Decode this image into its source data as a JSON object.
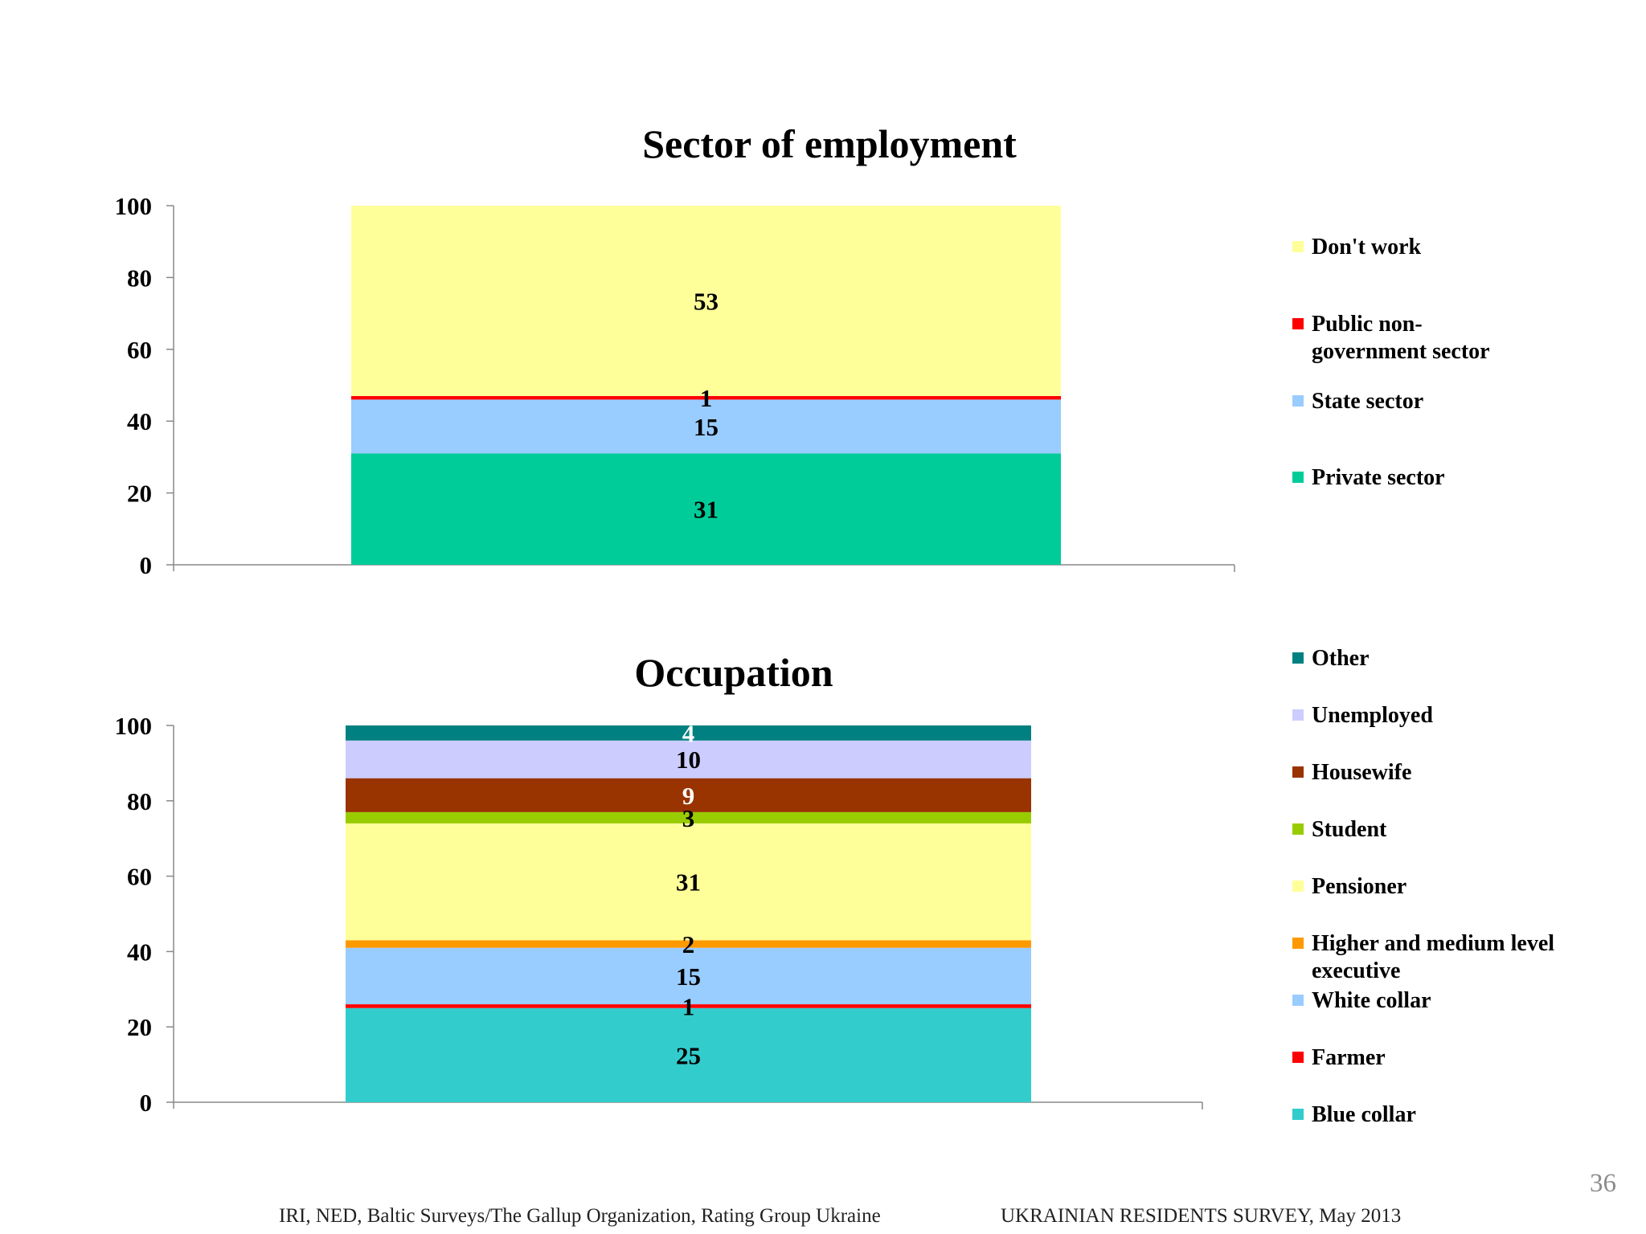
{
  "chart_data": [
    {
      "type": "bar",
      "stacked": true,
      "title": "Sector of employment",
      "ylim": [
        0,
        100
      ],
      "yticks": [
        0,
        20,
        40,
        60,
        80,
        100
      ],
      "grid": false,
      "legend_position": "right",
      "series": [
        {
          "name": "Private sector",
          "value": 31,
          "color": "#00cc99"
        },
        {
          "name": "State sector",
          "value": 15,
          "color": "#99ccff"
        },
        {
          "name": "Public non-government sector",
          "value": 1,
          "color": "#ff0000"
        },
        {
          "name": "Don't work",
          "value": 53,
          "color": "#ffff99"
        }
      ],
      "labels": [
        "31",
        "15",
        "1",
        "53"
      ],
      "legend_order": [
        "Don't work",
        "Public non-government sector",
        "State sector",
        "Private sector"
      ],
      "legend_lines": {
        "Don't work": [
          "Don't work"
        ],
        "Public non-government sector": [
          "Public non-",
          "government sector"
        ],
        "State sector": [
          "State sector"
        ],
        "Private sector": [
          "Private sector"
        ]
      }
    },
    {
      "type": "bar",
      "stacked": true,
      "title": "Occupation",
      "ylim": [
        0,
        100
      ],
      "yticks": [
        0,
        20,
        40,
        60,
        80,
        100
      ],
      "grid": false,
      "legend_position": "right",
      "series": [
        {
          "name": "Blue collar",
          "value": 25,
          "color": "#33cccc"
        },
        {
          "name": "Farmer",
          "value": 1,
          "color": "#ff0000"
        },
        {
          "name": "White collar",
          "value": 15,
          "color": "#99ccff"
        },
        {
          "name": "Higher and medium level executive",
          "value": 2,
          "color": "#ff9900"
        },
        {
          "name": "Pensioner",
          "value": 31,
          "color": "#ffff99"
        },
        {
          "name": "Student",
          "value": 3,
          "color": "#99cc00"
        },
        {
          "name": "Housewife",
          "value": 9,
          "color": "#993300"
        },
        {
          "name": "Unemployed",
          "value": 10,
          "color": "#ccccff"
        },
        {
          "name": "Other",
          "value": 4,
          "color": "#008080"
        }
      ],
      "labels": [
        "25",
        "1",
        "15",
        "2",
        "31",
        "3",
        "9",
        "10",
        "4"
      ],
      "label_colors": {
        "Housewife": "#ffffff",
        "Other": "#ffffff"
      },
      "legend_order": [
        "Other",
        "Unemployed",
        "Housewife",
        "Student",
        "Pensioner",
        "Higher and medium level executive",
        "White collar",
        "Farmer",
        "Blue collar"
      ],
      "legend_lines": {
        "Other": [
          "Other"
        ],
        "Unemployed": [
          "Unemployed"
        ],
        "Housewife": [
          "Housewife"
        ],
        "Student": [
          "Student"
        ],
        "Pensioner": [
          "Pensioner"
        ],
        "Higher and medium level executive": [
          "Higher and medium level",
          "executive"
        ],
        "White collar": [
          "White collar"
        ],
        "Farmer": [
          "Farmer"
        ],
        "Blue collar": [
          "Blue collar"
        ]
      }
    }
  ],
  "footer": {
    "source": "IRI, NED,  Baltic Surveys/The Gallup Organization, Rating Group Ukraine",
    "survey": "UKRAINIAN RESIDENTS SURVEY, May  2013",
    "page_number": "36"
  }
}
